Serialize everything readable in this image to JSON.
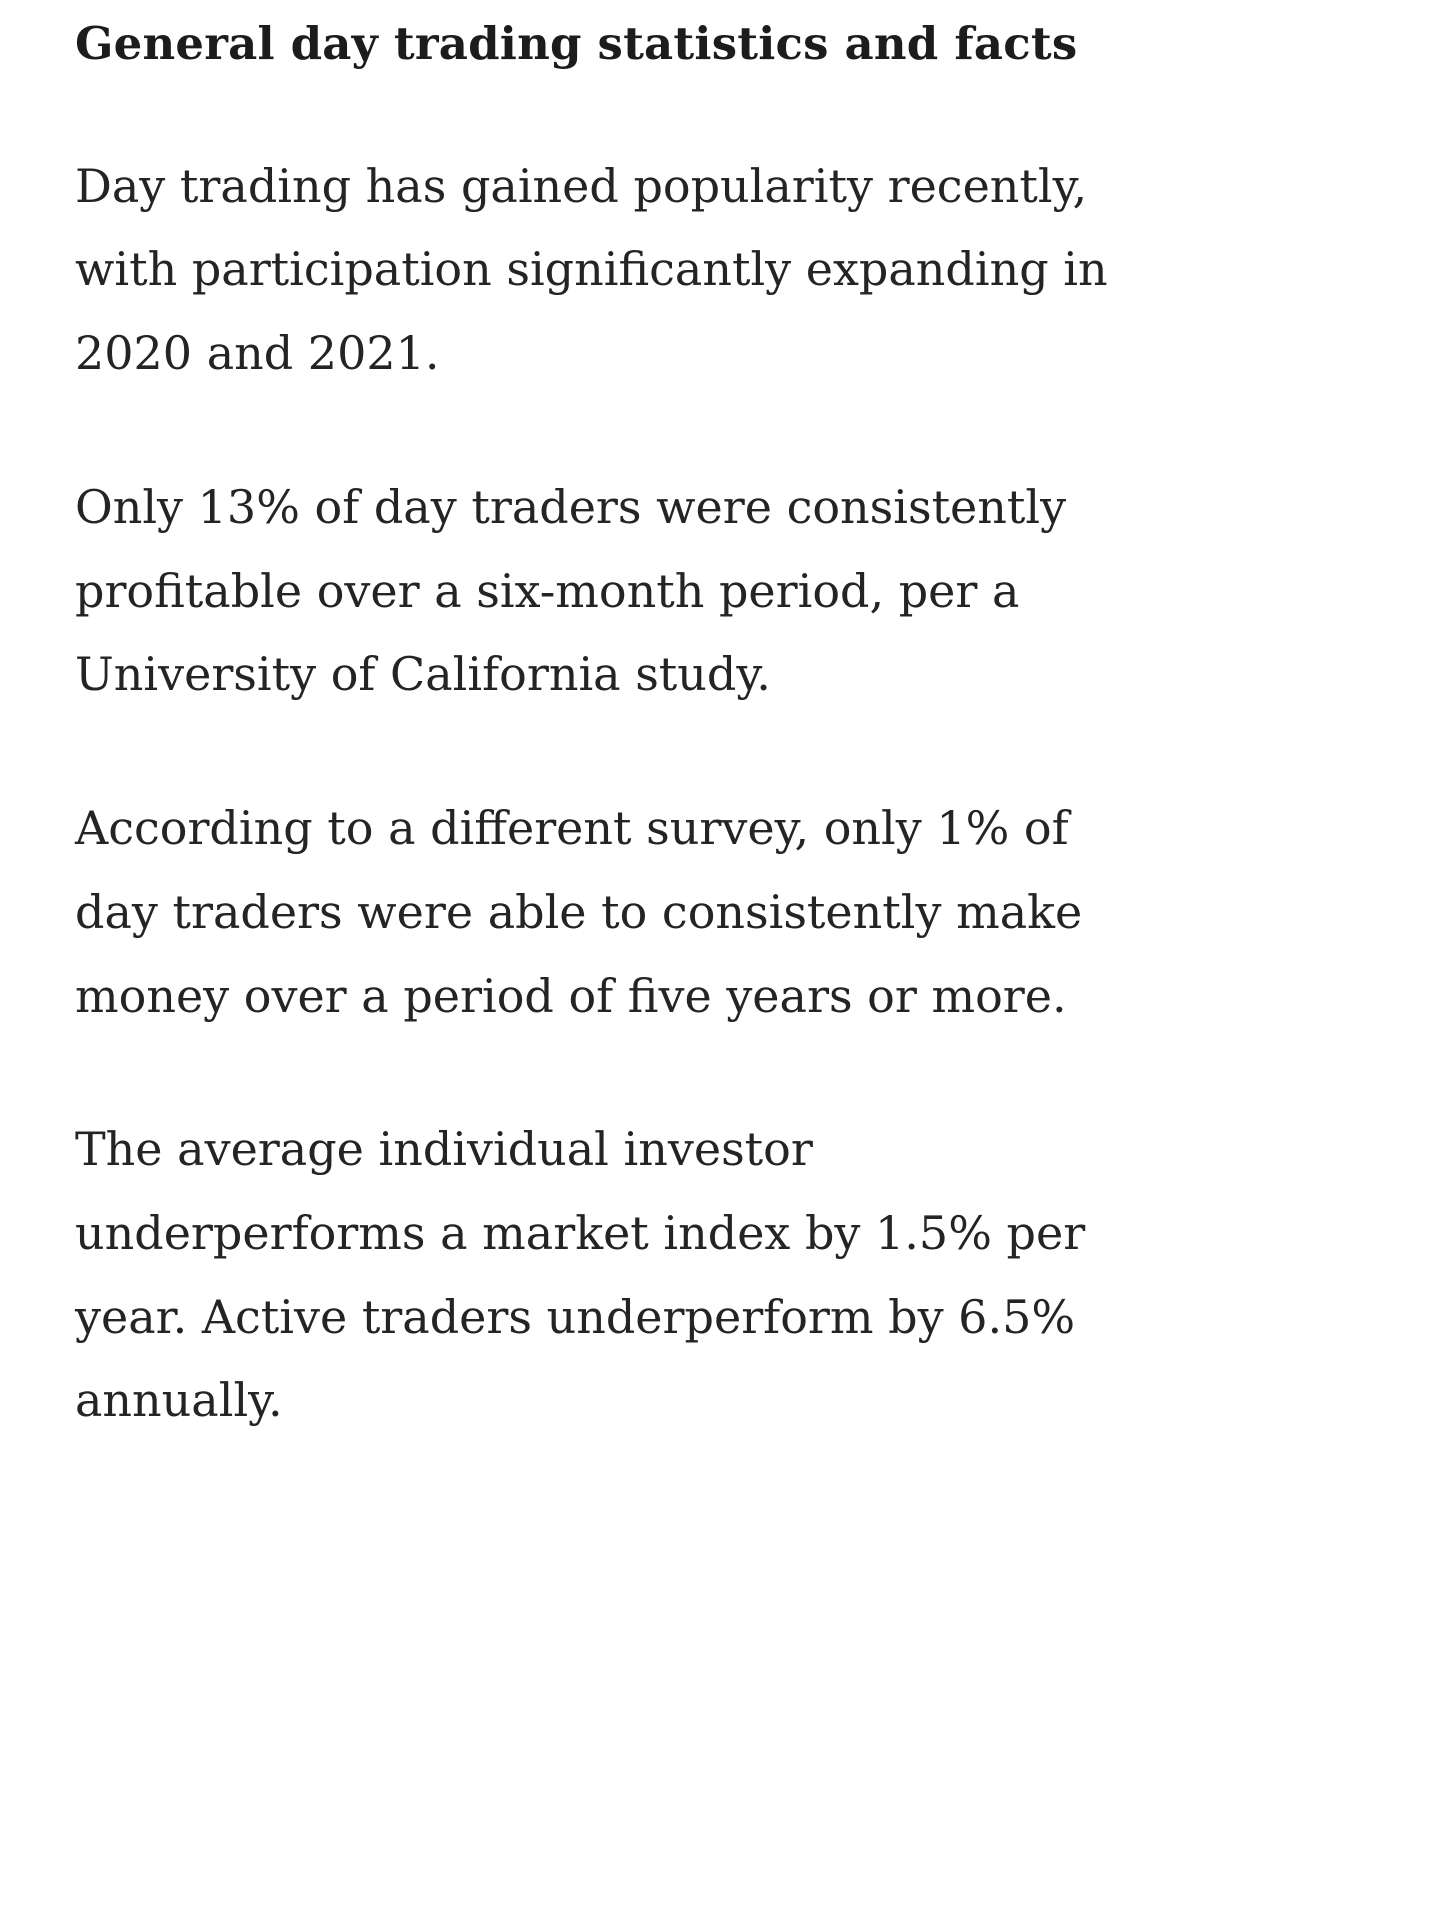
{
  "article": {
    "heading": "General day trading statistics and facts",
    "paragraphs": [
      "Day trading has gained popularity recently, with participation significantly expanding in 2020 and 2021.",
      "Only 13% of day traders were consistently profitable over a six-month period, per a University of California study.",
      "According to a different survey, only 1% of day traders were able to consistently make money over a period of five years or more.",
      "The average individual investor underperforms a market index by 1.5% per year. Active traders underperform by 6.5% annually."
    ],
    "colors": {
      "background": "#ffffff",
      "body_text": "#242424",
      "heading_text": "#1c1c1c"
    }
  }
}
